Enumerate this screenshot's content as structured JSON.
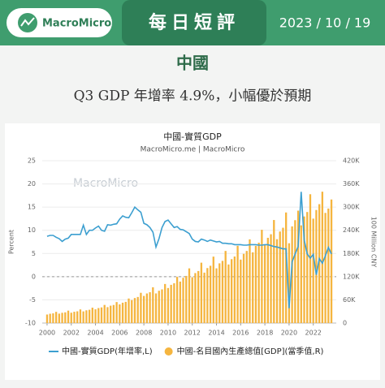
{
  "header": {
    "logo": "MacroMicro",
    "label": "每日短評",
    "date": "2023 / 10 / 19"
  },
  "headline": {
    "title": "中國",
    "subtitle": "Q3 GDP 年增率 4.9%，小幅優於預期"
  },
  "chart_data": {
    "type": "combo",
    "title": "中國-實質GDP",
    "subtitle": "MacroMicro.me | MacroMicro",
    "watermark": "MacroMicro",
    "ylabel": "Percent",
    "y2label": "100 Million CNY",
    "x": [
      2000,
      2000.25,
      2000.5,
      2000.75,
      2001,
      2001.25,
      2001.5,
      2001.75,
      2002,
      2002.25,
      2002.5,
      2002.75,
      2003,
      2003.25,
      2003.5,
      2003.75,
      2004,
      2004.25,
      2004.5,
      2004.75,
      2005,
      2005.25,
      2005.5,
      2005.75,
      2006,
      2006.25,
      2006.5,
      2006.75,
      2007,
      2007.25,
      2007.5,
      2007.75,
      2008,
      2008.25,
      2008.5,
      2008.75,
      2009,
      2009.25,
      2009.5,
      2009.75,
      2010,
      2010.25,
      2010.5,
      2010.75,
      2011,
      2011.25,
      2011.5,
      2011.75,
      2012,
      2012.25,
      2012.5,
      2012.75,
      2013,
      2013.25,
      2013.5,
      2013.75,
      2014,
      2014.25,
      2014.5,
      2014.75,
      2015,
      2015.25,
      2015.5,
      2015.75,
      2016,
      2016.25,
      2016.5,
      2016.75,
      2017,
      2017.25,
      2017.5,
      2017.75,
      2018,
      2018.25,
      2018.5,
      2018.75,
      2019,
      2019.25,
      2019.5,
      2019.75,
      2020,
      2020.25,
      2020.5,
      2020.75,
      2021,
      2021.25,
      2021.5,
      2021.75,
      2022,
      2022.25,
      2022.5,
      2022.75,
      2023,
      2023.25,
      2023.5
    ],
    "xlim": [
      1999.6,
      2023.9
    ],
    "xticks": [
      2000,
      2002,
      2004,
      2006,
      2008,
      2010,
      2012,
      2014,
      2016,
      2018,
      2020,
      2022
    ],
    "ylim": [
      -10,
      25
    ],
    "yticks": [
      -10,
      -5,
      0,
      5,
      10,
      15,
      20,
      25
    ],
    "y2lim": [
      0,
      420000
    ],
    "y2ticks": [
      {
        "value": 0,
        "label": "0"
      },
      {
        "value": 60000,
        "label": "60K"
      },
      {
        "value": 120000,
        "label": "120K"
      },
      {
        "value": 180000,
        "label": "180K"
      },
      {
        "value": 240000,
        "label": "240K"
      },
      {
        "value": 300000,
        "label": "300K"
      },
      {
        "value": 360000,
        "label": "360K"
      },
      {
        "value": 420000,
        "label": "420K"
      }
    ],
    "grid": true,
    "series": [
      {
        "name": "中國-實質GDP(年增率,L)",
        "type": "line",
        "color": "#3c9fd0",
        "axis": "y",
        "values": [
          8.7,
          8.9,
          8.9,
          8.5,
          8.2,
          7.6,
          8.1,
          8.3,
          9.1,
          9.1,
          9.1,
          9.1,
          11.1,
          9.1,
          10.0,
          10.0,
          10.5,
          10.9,
          10.0,
          9.8,
          11.2,
          11.1,
          11.3,
          11.4,
          12.4,
          13.1,
          12.8,
          12.7,
          13.8,
          15.0,
          14.4,
          13.9,
          11.5,
          11.2,
          10.6,
          9.6,
          6.4,
          8.2,
          10.6,
          11.9,
          12.2,
          11.4,
          10.6,
          10.8,
          10.2,
          10.1,
          9.7,
          9.3,
          8.1,
          7.6,
          7.5,
          8.1,
          7.9,
          7.6,
          7.9,
          7.7,
          7.5,
          7.6,
          7.2,
          7.2,
          7.1,
          7.1,
          6.9,
          6.9,
          6.9,
          6.8,
          6.8,
          6.9,
          6.9,
          6.9,
          6.8,
          6.8,
          6.9,
          6.9,
          6.7,
          6.5,
          6.4,
          6.2,
          6.0,
          6.0,
          -6.8,
          3.2,
          4.9,
          6.5,
          18.3,
          7.9,
          4.9,
          4.0,
          4.8,
          0.4,
          3.9,
          2.9,
          4.5,
          6.3,
          4.9
        ]
      },
      {
        "name": "中國-名目國內生產總值[GDP](當季值,R)",
        "type": "bar",
        "color": "#f5b53f",
        "axis": "y2",
        "values": [
          22100,
          24100,
          25100,
          29000,
          24400,
          26600,
          27700,
          32200,
          26800,
          29200,
          30400,
          35300,
          30200,
          33000,
          34400,
          39800,
          35600,
          38800,
          40500,
          46900,
          41200,
          45000,
          46800,
          54300,
          48300,
          52700,
          54900,
          63500,
          59400,
          64800,
          67500,
          78300,
          70200,
          76600,
          79800,
          92600,
          76700,
          83600,
          87100,
          101100,
          90700,
          98900,
          103000,
          119500,
          107300,
          117100,
          122000,
          141500,
          118500,
          129300,
          134600,
          156200,
          130500,
          142300,
          148200,
          171900,
          141600,
          154500,
          160900,
          186600,
          151600,
          165300,
          172200,
          199800,
          164200,
          179100,
          186600,
          216500,
          183000,
          199700,
          208000,
          241300,
          202200,
          220600,
          229800,
          266600,
          217000,
          236800,
          246600,
          286100,
          206500,
          250100,
          266200,
          290800,
          252800,
          275800,
          287300,
          333300,
          270200,
          292500,
          307600,
          339900,
          285000,
          296300,
          319700
        ]
      }
    ]
  }
}
